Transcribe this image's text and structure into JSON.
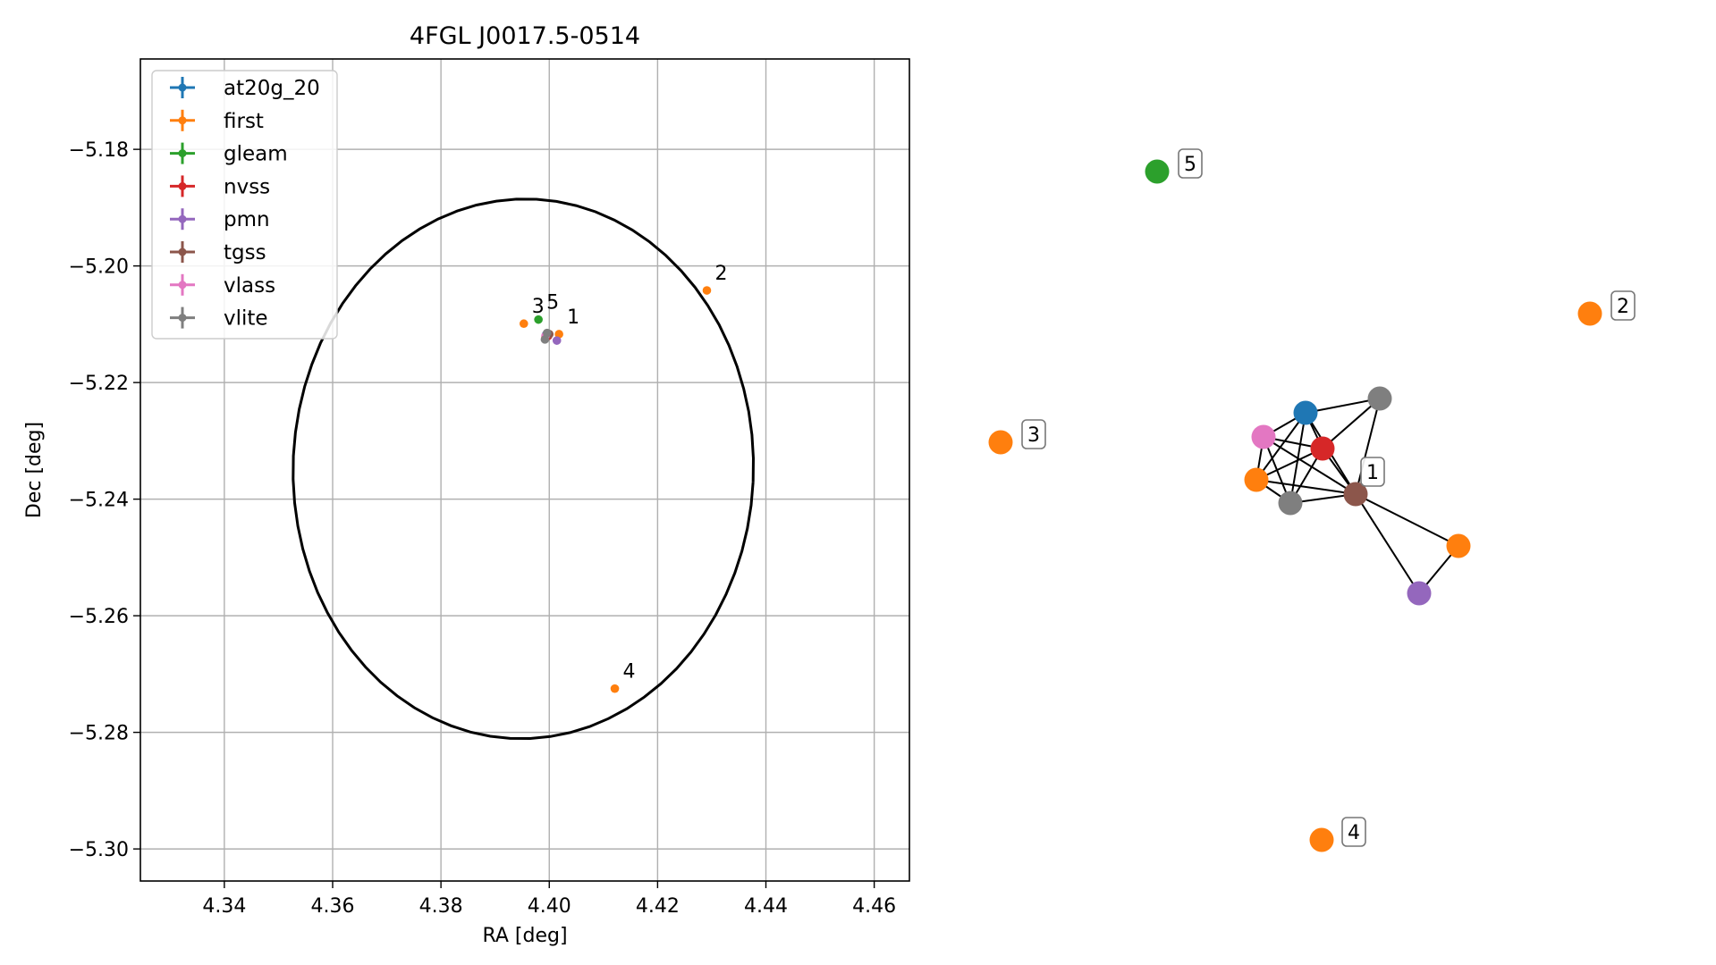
{
  "chart_data": [
    {
      "type": "scatter",
      "title": "4FGL J0017.5-0514",
      "xlabel": "RA [deg]",
      "ylabel": "Dec [deg]",
      "xlim": [
        4.3245,
        4.4665
      ],
      "ylim": [
        -5.3055,
        -5.1645
      ],
      "xticks": [
        "4.34",
        "4.36",
        "4.38",
        "4.40",
        "4.42",
        "4.44",
        "4.46"
      ],
      "xtick_values": [
        4.34,
        4.36,
        4.38,
        4.4,
        4.42,
        4.44,
        4.46
      ],
      "yticks": [
        "−5.18",
        "−5.20",
        "−5.22",
        "−5.24",
        "−5.26",
        "−5.28",
        "−5.30"
      ],
      "ytick_values": [
        -5.18,
        -5.2,
        -5.22,
        -5.24,
        -5.26,
        -5.28,
        -5.3
      ],
      "grid": true,
      "legend_position": "top-left",
      "ellipse": {
        "center": [
          4.3952,
          -5.2348
        ],
        "semi_axis_ra": 0.0425,
        "semi_axis_dec": 0.0463,
        "angle_deg": -3,
        "color": "#000000"
      },
      "series": [
        {
          "name": "at20g_20",
          "color": "#1f77b4",
          "points": [
            [
              4.3994,
              -5.2118
            ]
          ]
        },
        {
          "name": "first",
          "color": "#ff7f0e",
          "points": [
            [
              4.4018,
              -5.2117
            ],
            [
              4.4291,
              -5.2042
            ],
            [
              4.3953,
              -5.2099
            ],
            [
              4.4121,
              -5.2725
            ],
            [
              4.3993,
              -5.2122
            ]
          ]
        },
        {
          "name": "gleam",
          "color": "#2ca02c",
          "points": [
            [
              4.398,
              -5.2092
            ]
          ]
        },
        {
          "name": "nvss",
          "color": "#d62728",
          "points": [
            [
              4.3998,
              -5.212
            ]
          ]
        },
        {
          "name": "pmn",
          "color": "#9467bd",
          "points": [
            [
              4.4014,
              -5.2128
            ]
          ]
        },
        {
          "name": "tgss",
          "color": "#8c564b",
          "points": [
            [
              4.4,
              -5.2117
            ]
          ]
        },
        {
          "name": "vlass",
          "color": "#e377c2",
          "points": [
            [
              4.3993,
              -5.212
            ]
          ]
        },
        {
          "name": "vlite",
          "color": "#7f7f7f",
          "points": [
            [
              4.3992,
              -5.2126
            ],
            [
              4.3996,
              -5.2115
            ]
          ]
        }
      ],
      "annotations": [
        {
          "text": "1",
          "x": 4.4018,
          "y": -5.2117
        },
        {
          "text": "2",
          "x": 4.4291,
          "y": -5.2042
        },
        {
          "text": "3",
          "x": 4.3953,
          "y": -5.2099
        },
        {
          "text": "4",
          "x": 4.4121,
          "y": -5.2725
        },
        {
          "text": "5",
          "x": 4.398,
          "y": -5.2092
        }
      ]
    },
    {
      "type": "network",
      "nodes": [
        {
          "id": "n5",
          "color": "#2ca02c",
          "label": "5"
        },
        {
          "id": "n2",
          "color": "#ff7f0e",
          "label": "2"
        },
        {
          "id": "n3",
          "color": "#ff7f0e",
          "label": "3"
        },
        {
          "id": "n4",
          "color": "#ff7f0e",
          "label": "4"
        },
        {
          "id": "n1",
          "color": "#8c564b",
          "label": "1"
        },
        {
          "id": "blue",
          "color": "#1f77b4",
          "label": ""
        },
        {
          "id": "gray_top",
          "color": "#7f7f7f",
          "label": ""
        },
        {
          "id": "pink",
          "color": "#e377c2",
          "label": ""
        },
        {
          "id": "red",
          "color": "#d62728",
          "label": ""
        },
        {
          "id": "orange_left",
          "color": "#ff7f0e",
          "label": ""
        },
        {
          "id": "gray_bottom",
          "color": "#7f7f7f",
          "label": ""
        },
        {
          "id": "orange_right",
          "color": "#ff7f0e",
          "label": ""
        },
        {
          "id": "purple",
          "color": "#9467bd",
          "label": ""
        }
      ],
      "edges": [
        [
          "blue",
          "gray_top"
        ],
        [
          "blue",
          "pink"
        ],
        [
          "blue",
          "red"
        ],
        [
          "blue",
          "orange_left"
        ],
        [
          "blue",
          "gray_bottom"
        ],
        [
          "blue",
          "n1"
        ],
        [
          "gray_top",
          "red"
        ],
        [
          "gray_top",
          "n1"
        ],
        [
          "pink",
          "red"
        ],
        [
          "pink",
          "orange_left"
        ],
        [
          "pink",
          "gray_bottom"
        ],
        [
          "pink",
          "n1"
        ],
        [
          "red",
          "orange_left"
        ],
        [
          "red",
          "gray_bottom"
        ],
        [
          "red",
          "n1"
        ],
        [
          "orange_left",
          "gray_bottom"
        ],
        [
          "orange_left",
          "n1"
        ],
        [
          "gray_bottom",
          "n1"
        ],
        [
          "n1",
          "orange_right"
        ],
        [
          "n1",
          "purple"
        ],
        [
          "orange_right",
          "purple"
        ]
      ]
    }
  ]
}
